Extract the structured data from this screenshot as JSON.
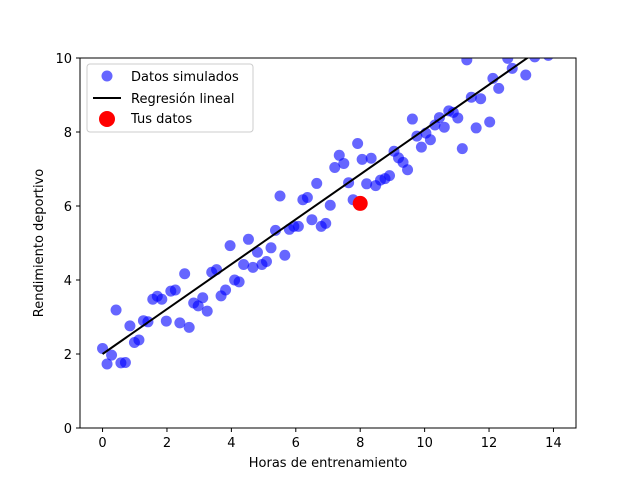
{
  "chart_data": {
    "type": "scatter",
    "title": "",
    "xlabel": "Horas de entrenamiento",
    "ylabel": "Rendimiento deportivo",
    "xlim": [
      -0.7,
      14.7
    ],
    "ylim": [
      0,
      10
    ],
    "xticks": [
      0,
      2,
      4,
      6,
      8,
      10,
      12,
      14
    ],
    "yticks": [
      0,
      2,
      4,
      6,
      8,
      10
    ],
    "grid": false,
    "legend_position": "top-left",
    "series": [
      {
        "name": "Datos simulados",
        "kind": "scatter",
        "color": "#0000ff",
        "opacity": 0.6,
        "points": [
          [
            0.0,
            2.15
          ],
          [
            0.14,
            1.73
          ],
          [
            0.28,
            1.97
          ],
          [
            0.42,
            3.19
          ],
          [
            0.57,
            1.76
          ],
          [
            0.71,
            1.77
          ],
          [
            0.85,
            2.76
          ],
          [
            0.99,
            2.31
          ],
          [
            1.13,
            2.38
          ],
          [
            1.27,
            2.9
          ],
          [
            1.41,
            2.87
          ],
          [
            1.56,
            3.48
          ],
          [
            1.7,
            3.56
          ],
          [
            1.84,
            3.48
          ],
          [
            1.98,
            2.89
          ],
          [
            2.12,
            3.7
          ],
          [
            2.26,
            3.73
          ],
          [
            2.4,
            2.84
          ],
          [
            2.55,
            4.17
          ],
          [
            2.69,
            2.72
          ],
          [
            2.83,
            3.38
          ],
          [
            2.97,
            3.3
          ],
          [
            3.11,
            3.52
          ],
          [
            3.25,
            3.16
          ],
          [
            3.39,
            4.21
          ],
          [
            3.54,
            4.28
          ],
          [
            3.68,
            3.57
          ],
          [
            3.82,
            3.73
          ],
          [
            3.96,
            4.93
          ],
          [
            4.1,
            4.0
          ],
          [
            4.24,
            3.95
          ],
          [
            4.38,
            4.42
          ],
          [
            4.53,
            5.1
          ],
          [
            4.67,
            4.34
          ],
          [
            4.81,
            4.75
          ],
          [
            4.95,
            4.42
          ],
          [
            5.09,
            4.5
          ],
          [
            5.23,
            4.87
          ],
          [
            5.37,
            5.34
          ],
          [
            5.51,
            6.27
          ],
          [
            5.66,
            4.67
          ],
          [
            5.8,
            5.37
          ],
          [
            5.94,
            5.45
          ],
          [
            6.08,
            5.45
          ],
          [
            6.22,
            6.17
          ],
          [
            6.36,
            6.23
          ],
          [
            6.5,
            5.63
          ],
          [
            6.65,
            6.61
          ],
          [
            6.79,
            5.45
          ],
          [
            6.93,
            5.53
          ],
          [
            7.07,
            6.02
          ],
          [
            7.21,
            7.04
          ],
          [
            7.35,
            7.37
          ],
          [
            7.49,
            7.15
          ],
          [
            7.64,
            6.63
          ],
          [
            7.78,
            6.17
          ],
          [
            7.92,
            7.69
          ],
          [
            8.06,
            7.26
          ],
          [
            8.2,
            6.6
          ],
          [
            8.34,
            7.29
          ],
          [
            8.48,
            6.55
          ],
          [
            8.63,
            6.7
          ],
          [
            8.77,
            6.74
          ],
          [
            8.91,
            6.82
          ],
          [
            9.05,
            7.48
          ],
          [
            9.19,
            7.3
          ],
          [
            9.33,
            7.18
          ],
          [
            9.47,
            6.98
          ],
          [
            9.62,
            8.35
          ],
          [
            9.76,
            7.89
          ],
          [
            9.9,
            7.59
          ],
          [
            10.04,
            7.97
          ],
          [
            10.18,
            7.79
          ],
          [
            10.32,
            8.19
          ],
          [
            10.46,
            8.39
          ],
          [
            10.61,
            8.13
          ],
          [
            10.75,
            8.57
          ],
          [
            10.89,
            8.53
          ],
          [
            11.03,
            8.38
          ],
          [
            11.17,
            7.55
          ],
          [
            11.31,
            9.95
          ],
          [
            11.45,
            8.94
          ],
          [
            11.6,
            8.11
          ],
          [
            11.74,
            8.9
          ],
          [
            12.02,
            8.27
          ],
          [
            12.12,
            9.45
          ],
          [
            12.3,
            9.18
          ],
          [
            12.58,
            9.99
          ],
          [
            12.72,
            9.72
          ],
          [
            13.14,
            9.54
          ],
          [
            13.42,
            10.03
          ],
          [
            13.84,
            10.07
          ]
        ]
      },
      {
        "name": "Regresión lineal",
        "kind": "line",
        "color": "#000000",
        "points": [
          [
            0,
            2.0
          ],
          [
            13.6,
            10.25
          ]
        ]
      },
      {
        "name": "Tus datos",
        "kind": "highlight",
        "color": "#ff0000",
        "points": [
          [
            8,
            6.07
          ]
        ]
      }
    ]
  }
}
